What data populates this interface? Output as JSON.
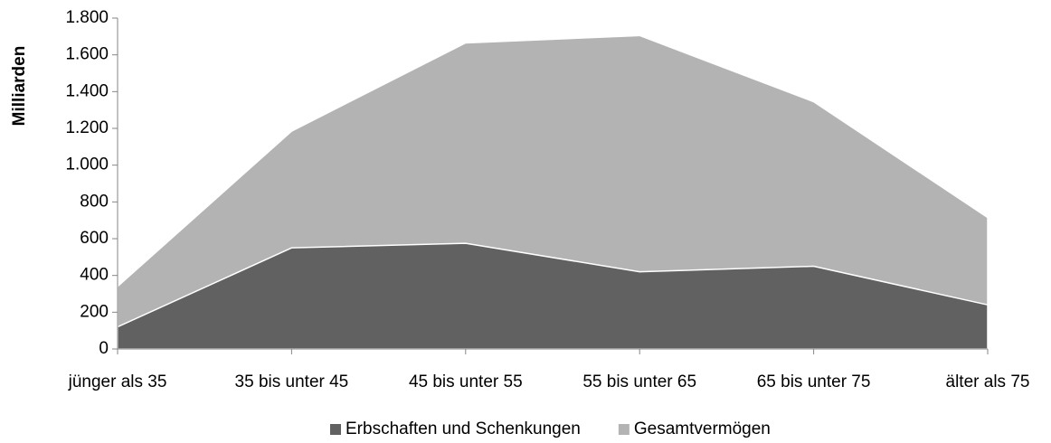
{
  "chart_data": {
    "type": "area",
    "y_label": "Milliarden",
    "categories": [
      "jünger als 35",
      "35 bis unter 45",
      "45 bis unter 55",
      "55 bis unter 65",
      "65 bis unter 75",
      "älter als 75"
    ],
    "series": [
      {
        "name": "Erbschaften und Schenkungen",
        "color": "#616161",
        "values": [
          120,
          550,
          575,
          420,
          450,
          240
        ]
      },
      {
        "name": "Gesamtvermögen",
        "color": "#b3b3b3",
        "values": [
          340,
          1185,
          1665,
          1705,
          1345,
          715
        ]
      }
    ],
    "ylim": [
      0,
      1800
    ],
    "yticks": [
      0,
      200,
      400,
      600,
      800,
      {
        "value": 1000,
        "label": "1.000"
      },
      {
        "value": 1200,
        "label": "1.200"
      },
      {
        "value": 1400,
        "label": "1.400"
      },
      {
        "value": 1600,
        "label": "1.600"
      },
      {
        "value": 1800,
        "label": "1.800"
      }
    ],
    "legend": "bottom"
  }
}
